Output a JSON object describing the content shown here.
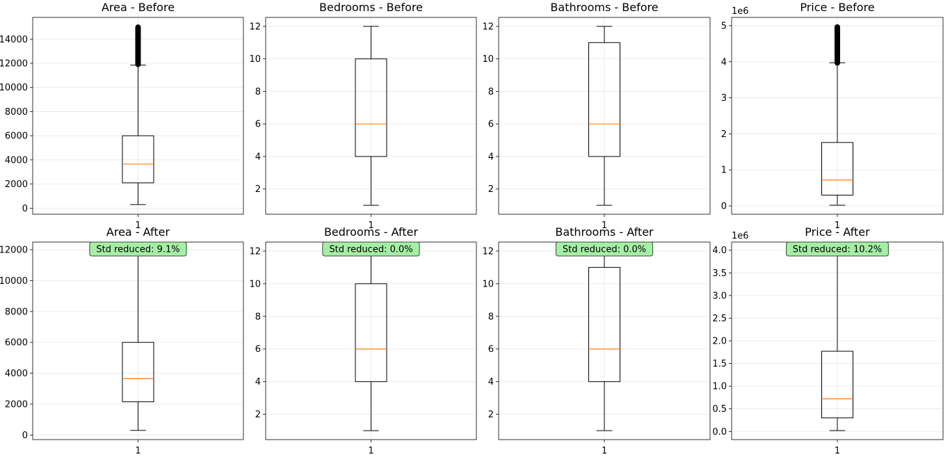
{
  "chart_data": [
    {
      "type": "box",
      "title": "Area - Before",
      "ylim": [
        -500,
        15800
      ],
      "yticks": [
        0,
        2000,
        4000,
        6000,
        8000,
        10000,
        12000,
        14000
      ],
      "ytick_labels": [
        "0",
        "2000",
        "4000",
        "6000",
        "8000",
        "10000",
        "12000",
        "14000"
      ],
      "xtick_labels": [
        "1"
      ],
      "box": {
        "whisker_low": 300,
        "q1": 2100,
        "median": 3650,
        "q3": 6000,
        "whisker_high": 11850,
        "outliers": [
          11800,
          15100
        ]
      },
      "annotation": "",
      "grid": true
    },
    {
      "type": "box",
      "title": "Bedrooms - Before",
      "ylim": [
        0.45,
        12.55
      ],
      "yticks": [
        2,
        4,
        6,
        8,
        10,
        12
      ],
      "ytick_labels": [
        "2",
        "4",
        "6",
        "8",
        "10",
        "12"
      ],
      "xtick_labels": [
        "1"
      ],
      "box": {
        "whisker_low": 1,
        "q1": 4,
        "median": 6,
        "q3": 10,
        "whisker_high": 12,
        "outliers": []
      },
      "annotation": "",
      "grid": true
    },
    {
      "type": "box",
      "title": "Bathrooms - Before",
      "ylim": [
        0.45,
        12.55
      ],
      "yticks": [
        2,
        4,
        6,
        8,
        10,
        12
      ],
      "ytick_labels": [
        "2",
        "4",
        "6",
        "8",
        "10",
        "12"
      ],
      "xtick_labels": [
        "1"
      ],
      "box": {
        "whisker_low": 1,
        "q1": 4,
        "median": 6,
        "q3": 11,
        "whisker_high": 12,
        "outliers": []
      },
      "annotation": "",
      "grid": true
    },
    {
      "type": "box",
      "title": "Price - Before",
      "ylim": [
        -0.23,
        5.23
      ],
      "yticks": [
        0,
        1,
        2,
        3,
        4,
        5
      ],
      "ytick_labels": [
        "0",
        "1",
        "2",
        "3",
        "4",
        "5"
      ],
      "offset_label": "1e6",
      "xtick_labels": [
        "1"
      ],
      "box": {
        "whisker_low": 0.02,
        "q1": 0.3,
        "median": 0.72,
        "q3": 1.76,
        "whisker_high": 3.97,
        "outliers": [
          3.93,
          5.0
        ]
      },
      "annotation": "",
      "grid": true
    },
    {
      "type": "box",
      "title": "Area - After",
      "ylim": [
        -300,
        12500
      ],
      "yticks": [
        0,
        2000,
        4000,
        6000,
        8000,
        10000,
        12000
      ],
      "ytick_labels": [
        "0",
        "2000",
        "4000",
        "6000",
        "8000",
        "10000",
        "12000"
      ],
      "xtick_labels": [
        "1"
      ],
      "box": {
        "whisker_low": 300,
        "q1": 2150,
        "median": 3650,
        "q3": 6000,
        "whisker_high": 11850,
        "outliers": []
      },
      "annotation": "Std reduced: 9.1%",
      "grid": true
    },
    {
      "type": "box",
      "title": "Bedrooms - After",
      "ylim": [
        0.45,
        12.55
      ],
      "yticks": [
        2,
        4,
        6,
        8,
        10,
        12
      ],
      "ytick_labels": [
        "2",
        "4",
        "6",
        "8",
        "10",
        "12"
      ],
      "xtick_labels": [
        "1"
      ],
      "box": {
        "whisker_low": 1,
        "q1": 4,
        "median": 6,
        "q3": 10,
        "whisker_high": 12,
        "outliers": []
      },
      "annotation": "Std reduced: 0.0%",
      "grid": true
    },
    {
      "type": "box",
      "title": "Bathrooms - After",
      "ylim": [
        0.45,
        12.55
      ],
      "yticks": [
        2,
        4,
        6,
        8,
        10,
        12
      ],
      "ytick_labels": [
        "2",
        "4",
        "6",
        "8",
        "10",
        "12"
      ],
      "xtick_labels": [
        "1"
      ],
      "box": {
        "whisker_low": 1,
        "q1": 4,
        "median": 6,
        "q3": 11,
        "whisker_high": 12,
        "outliers": []
      },
      "annotation": "Std reduced: 0.0%",
      "grid": true
    },
    {
      "type": "box",
      "title": "Price - After",
      "ylim": [
        -0.18,
        4.18
      ],
      "yticks": [
        0,
        0.5,
        1,
        1.5,
        2,
        2.5,
        3,
        3.5,
        4
      ],
      "ytick_labels": [
        "0.0",
        "0.5",
        "1.0",
        "1.5",
        "2.0",
        "2.5",
        "3.0",
        "3.5",
        "4.0"
      ],
      "offset_label": "1e6",
      "xtick_labels": [
        "1"
      ],
      "box": {
        "whisker_low": 0.02,
        "q1": 0.3,
        "median": 0.72,
        "q3": 1.77,
        "whisker_high": 3.97,
        "outliers": []
      },
      "annotation": "Std reduced: 10.2%",
      "grid": true
    }
  ],
  "colors": {
    "box": "#000000",
    "median": "#ff7f0e",
    "grid": "#e6e6e6",
    "annotation_bg": "#a6eea6",
    "annotation_edge": "#2f4f2f"
  }
}
